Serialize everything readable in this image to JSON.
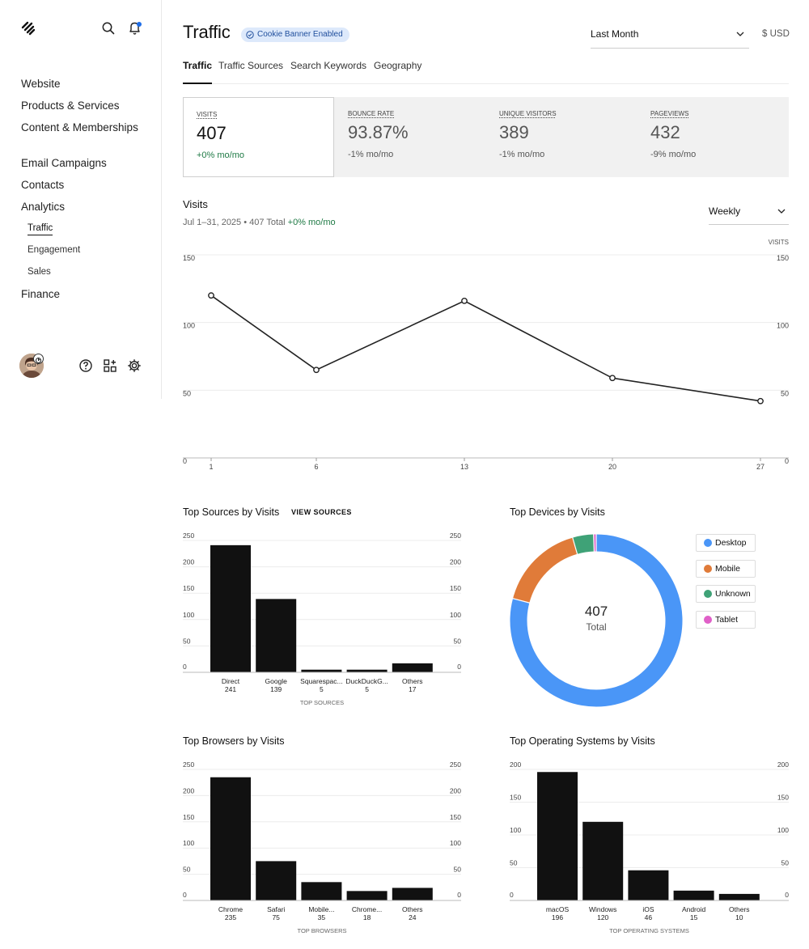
{
  "sidebar": {
    "nav_top": [
      "Website",
      "Products & Services",
      "Content & Memberships"
    ],
    "nav_mid": [
      "Email Campaigns",
      "Contacts",
      "Analytics"
    ],
    "analytics_sub": [
      "Traffic",
      "Engagement",
      "Sales"
    ],
    "nav_bottom": [
      "Finance"
    ]
  },
  "header": {
    "title": "Traffic",
    "badge": "Cookie Banner Enabled",
    "range": "Last Month",
    "currency": "$ USD"
  },
  "tabs": [
    "Traffic",
    "Traffic Sources",
    "Search Keywords",
    "Geography"
  ],
  "metrics": [
    {
      "label": "VISITS",
      "value": "407",
      "change": "+0% mo/mo"
    },
    {
      "label": "BOUNCE RATE",
      "value": "93.87%",
      "change": "-1% mo/mo"
    },
    {
      "label": "UNIQUE VISITORS",
      "value": "389",
      "change": "-1% mo/mo"
    },
    {
      "label": "PAGEVIEWS",
      "value": "432",
      "change": "-9% mo/mo"
    }
  ],
  "visits": {
    "title": "Visits",
    "subtitle_prefix": "Jul 1–31, 2025 • 407 Total ",
    "subtitle_change": "+0% mo/mo",
    "interval": "Weekly"
  },
  "sources": {
    "title": "Top Sources by Visits",
    "link": "VIEW SOURCES"
  },
  "devices": {
    "title": "Top Devices by Visits",
    "total": "407",
    "total_label": "Total"
  },
  "browsers": {
    "title": "Top Browsers by Visits"
  },
  "os": {
    "title": "Top Operating Systems by Visits"
  },
  "colors": {
    "desktop": "#4a96f7",
    "mobile": "#e07b39",
    "unknown": "#3fa277",
    "tablet": "#e060c8",
    "positive": "#1f7a45",
    "bar": "#111111"
  },
  "chart_data": [
    {
      "id": "visits",
      "type": "line",
      "x": [
        "1",
        "6",
        "13",
        "20",
        "27"
      ],
      "values": [
        120,
        65,
        116,
        59,
        42
      ],
      "ylim": [
        0,
        150
      ],
      "yticks": [
        0,
        50,
        100,
        150
      ],
      "y_label": "VISITS"
    },
    {
      "id": "sources",
      "type": "bar",
      "categories": [
        "Direct",
        "Google",
        "Squarespac...",
        "DuckDuckG...",
        "Others"
      ],
      "values": [
        241,
        139,
        5,
        5,
        17
      ],
      "ylim": [
        0,
        250
      ],
      "yticks": [
        0,
        50,
        100,
        150,
        200,
        250
      ],
      "xlabel": "TOP SOURCES"
    },
    {
      "id": "devices",
      "type": "pie",
      "labels": [
        "Desktop",
        "Mobile",
        "Unknown",
        "Tablet"
      ],
      "values": [
        322,
        67,
        16,
        2
      ]
    },
    {
      "id": "browsers",
      "type": "bar",
      "categories": [
        "Chrome",
        "Safari",
        "Mobile...",
        "Chrome...",
        "Others"
      ],
      "values": [
        235,
        75,
        35,
        18,
        24
      ],
      "ylim": [
        0,
        250
      ],
      "yticks": [
        0,
        50,
        100,
        150,
        200,
        250
      ],
      "xlabel": "TOP BROWSERS"
    },
    {
      "id": "os",
      "type": "bar",
      "categories": [
        "macOS",
        "Windows",
        "iOS",
        "Android",
        "Others"
      ],
      "values": [
        196,
        120,
        46,
        15,
        10
      ],
      "ylim": [
        0,
        200
      ],
      "yticks": [
        0,
        50,
        100,
        150,
        200
      ],
      "xlabel": "TOP OPERATING SYSTEMS"
    }
  ]
}
